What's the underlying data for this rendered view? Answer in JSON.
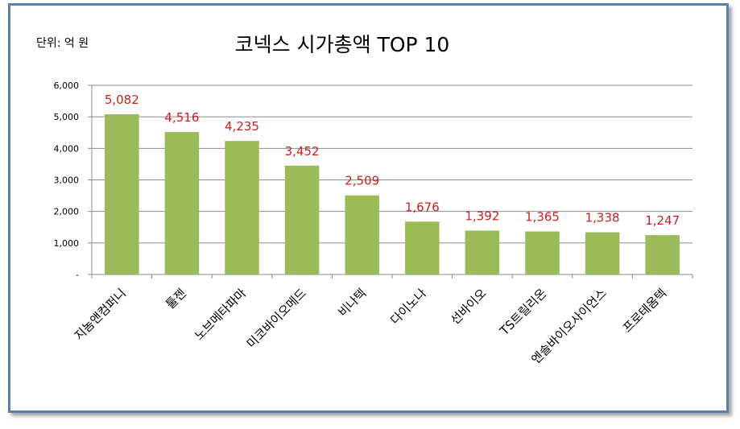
{
  "chart_data": {
    "type": "bar",
    "title": "코넥스 시가총액 TOP 10",
    "unit_label": "단위: 억 원",
    "categories": [
      "지놈앤컴퍼니",
      "툴젠",
      "노브메타파마",
      "미코바이오메드",
      "비나텍",
      "다이노나",
      "선바이오",
      "TS트릴리온",
      "엔솔바이오사이언스",
      "프로테옴텍"
    ],
    "values": [
      5082,
      4516,
      4235,
      3452,
      2509,
      1676,
      1392,
      1365,
      1338,
      1247
    ],
    "value_labels": [
      "5,082",
      "4,516",
      "4,235",
      "3,452",
      "2,509",
      "1,676",
      "1,392",
      "1,365",
      "1,338",
      "1,247"
    ],
    "y_ticks": [
      {
        "value": 0,
        "label": "-"
      },
      {
        "value": 1000,
        "label": "1,000"
      },
      {
        "value": 2000,
        "label": "2,000"
      },
      {
        "value": 3000,
        "label": "3,000"
      },
      {
        "value": 4000,
        "label": "4,000"
      },
      {
        "value": 5000,
        "label": "5,000"
      },
      {
        "value": 6000,
        "label": "6,000"
      }
    ],
    "ylim": [
      0,
      6000
    ],
    "xlabel": "",
    "ylabel": "",
    "grid": true,
    "legend": "none",
    "colors": {
      "bar": "#9bbb59",
      "value_label": "#cc1f1f",
      "grid": "#8c8c8c",
      "frame": "#5b7fae"
    }
  }
}
